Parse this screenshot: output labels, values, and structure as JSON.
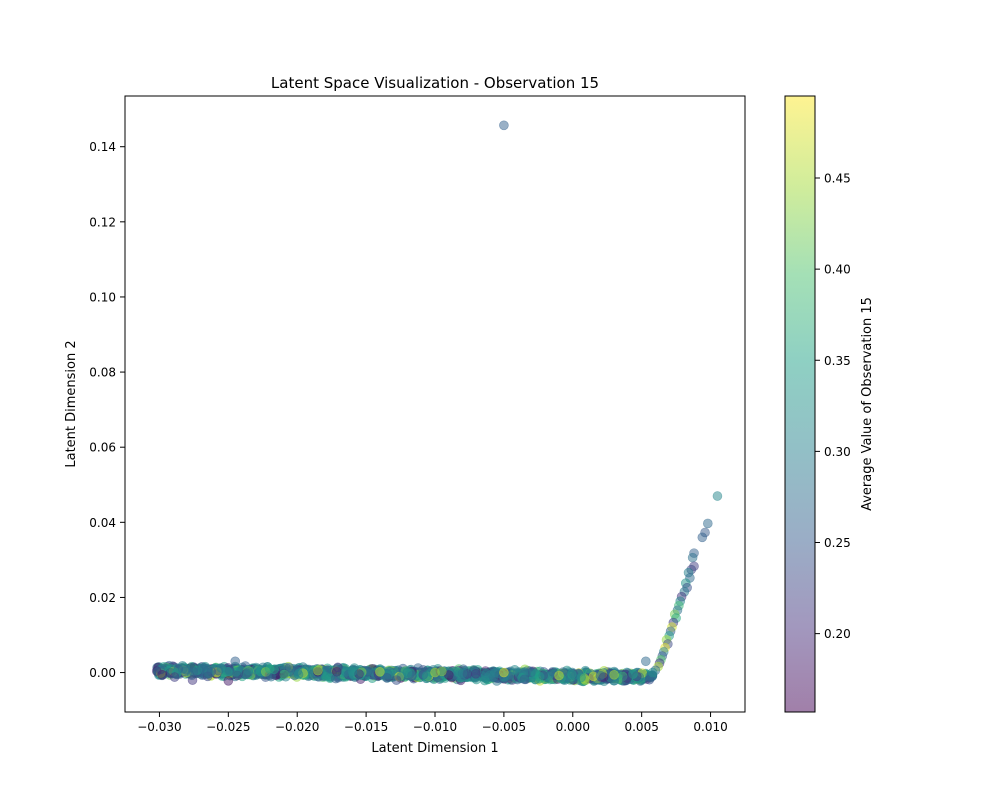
{
  "chart_data": {
    "type": "scatter",
    "title": "Latent Space Visualization - Observation 15",
    "xlabel": "Latent Dimension 1",
    "ylabel": "Latent Dimension 2",
    "xlim": [
      -0.0325,
      0.0125
    ],
    "ylim": [
      -0.0105,
      0.1535
    ],
    "xticks": [
      -0.03,
      -0.025,
      -0.02,
      -0.015,
      -0.01,
      -0.005,
      0.0,
      0.005,
      0.01
    ],
    "xtick_labels": [
      "−0.030",
      "−0.025",
      "−0.020",
      "−0.015",
      "−0.010",
      "−0.005",
      "0.000",
      "0.005",
      "0.010"
    ],
    "yticks": [
      0.0,
      0.02,
      0.04,
      0.06,
      0.08,
      0.1,
      0.12,
      0.14
    ],
    "ytick_labels": [
      "0.00",
      "0.02",
      "0.04",
      "0.06",
      "0.08",
      "0.10",
      "0.12",
      "0.14"
    ],
    "grid": false,
    "marker_alpha": 0.5,
    "colormap": "viridis",
    "colorbar": {
      "label": "Average Value of Observation 15",
      "range": [
        0.157,
        0.495
      ],
      "ticks": [
        0.2,
        0.25,
        0.3,
        0.35,
        0.4,
        0.45
      ],
      "tick_labels": [
        "0.20",
        "0.25",
        "0.30",
        "0.35",
        "0.40",
        "0.45"
      ]
    },
    "points": [
      {
        "x": -0.005,
        "y": 0.1457,
        "c": 0.26
      },
      {
        "x": 0.0105,
        "y": 0.047,
        "c": 0.31
      },
      {
        "x": 0.0098,
        "y": 0.0397,
        "c": 0.27
      },
      {
        "x": 0.0096,
        "y": 0.0373,
        "c": 0.25
      },
      {
        "x": 0.0094,
        "y": 0.036,
        "c": 0.26
      },
      {
        "x": 0.0088,
        "y": 0.0318,
        "c": 0.26
      },
      {
        "x": 0.0087,
        "y": 0.0306,
        "c": 0.28
      },
      {
        "x": 0.0088,
        "y": 0.0283,
        "c": 0.22
      },
      {
        "x": 0.0086,
        "y": 0.0274,
        "c": 0.23
      },
      {
        "x": 0.0084,
        "y": 0.0266,
        "c": 0.3
      },
      {
        "x": 0.0085,
        "y": 0.0252,
        "c": 0.27
      },
      {
        "x": 0.0082,
        "y": 0.0238,
        "c": 0.33
      },
      {
        "x": 0.0083,
        "y": 0.0226,
        "c": 0.24
      },
      {
        "x": 0.0081,
        "y": 0.0215,
        "c": 0.29
      },
      {
        "x": 0.0079,
        "y": 0.0202,
        "c": 0.21
      },
      {
        "x": 0.0078,
        "y": 0.019,
        "c": 0.31
      },
      {
        "x": 0.0077,
        "y": 0.0178,
        "c": 0.38
      },
      {
        "x": 0.0076,
        "y": 0.0166,
        "c": 0.28
      },
      {
        "x": 0.0074,
        "y": 0.0155,
        "c": 0.42
      },
      {
        "x": 0.0075,
        "y": 0.0145,
        "c": 0.36
      },
      {
        "x": 0.0073,
        "y": 0.0133,
        "c": 0.22
      },
      {
        "x": 0.0072,
        "y": 0.0121,
        "c": 0.47
      },
      {
        "x": 0.0071,
        "y": 0.011,
        "c": 0.26
      },
      {
        "x": 0.007,
        "y": 0.0098,
        "c": 0.34
      },
      {
        "x": 0.0068,
        "y": 0.0087,
        "c": 0.44
      },
      {
        "x": 0.0069,
        "y": 0.0076,
        "c": 0.23
      },
      {
        "x": 0.0067,
        "y": 0.0066,
        "c": 0.48
      },
      {
        "x": 0.0066,
        "y": 0.0055,
        "c": 0.3
      },
      {
        "x": 0.0065,
        "y": 0.0044,
        "c": 0.25
      },
      {
        "x": 0.0064,
        "y": 0.0034,
        "c": 0.4
      },
      {
        "x": 0.0063,
        "y": 0.0025,
        "c": 0.21
      },
      {
        "x": 0.0062,
        "y": 0.0016,
        "c": 0.45
      },
      {
        "x": 0.006,
        "y": 0.0006,
        "c": 0.27
      },
      {
        "x": 0.0058,
        "y": 0.0,
        "c": 0.32
      },
      {
        "x": 0.0053,
        "y": 0.003,
        "c": 0.27
      },
      {
        "x": 0.0039,
        "y": -0.002,
        "c": 0.25
      },
      {
        "x": -0.0245,
        "y": 0.003,
        "c": 0.26
      },
      {
        "x": -0.025,
        "y": -0.0022,
        "c": 0.18
      },
      {
        "x": -0.0298,
        "y": -0.0006,
        "c": 0.18
      },
      {
        "x": -0.0302,
        "y": 0.0004,
        "c": 0.2
      },
      {
        "x": -0.0289,
        "y": -0.0012,
        "c": 0.22
      },
      {
        "x": -0.0276,
        "y": -0.002,
        "c": 0.21
      },
      {
        "x": -0.0265,
        "y": -0.001,
        "c": 0.23
      },
      {
        "x": -0.0172,
        "y": -0.0016,
        "c": 0.26
      },
      {
        "x": -0.0135,
        "y": -0.0014,
        "c": 0.25
      },
      {
        "x": -0.0128,
        "y": -0.002,
        "c": 0.24
      },
      {
        "x": -0.005,
        "y": -0.0015,
        "c": 0.28
      },
      {
        "x": -0.0035,
        "y": -0.0018,
        "c": 0.26
      },
      {
        "x": -0.0185,
        "y": 0.0005,
        "c": 0.44
      },
      {
        "x": -0.014,
        "y": 0.0002,
        "c": 0.46
      },
      {
        "x": -0.01,
        "y": 0.0,
        "c": 0.45
      },
      {
        "x": -0.0095,
        "y": 0.0003,
        "c": 0.43
      },
      {
        "x": -0.005,
        "y": 0.0,
        "c": 0.48
      },
      {
        "x": -0.001,
        "y": -0.0008,
        "c": 0.46
      },
      {
        "x": 0.0015,
        "y": -0.001,
        "c": 0.47
      },
      {
        "x": 0.003,
        "y": -0.0006,
        "c": 0.45
      },
      {
        "x": -0.022,
        "y": 0.001,
        "c": 0.36
      },
      {
        "x": -0.023,
        "y": 0.0008,
        "c": 0.33
      },
      {
        "x": -0.0255,
        "y": 0.0012,
        "c": 0.31
      },
      {
        "x": -0.0283,
        "y": 0.001,
        "c": 0.29
      },
      {
        "x": -0.0265,
        "y": 0.0005,
        "c": 0.27
      },
      {
        "x": -0.02,
        "y": 0.0004,
        "c": 0.3
      },
      {
        "x": -0.016,
        "y": 0.0003,
        "c": 0.32
      },
      {
        "x": -0.012,
        "y": 0.0001,
        "c": 0.31
      },
      {
        "x": -0.008,
        "y": -0.0002,
        "c": 0.29
      },
      {
        "x": -0.002,
        "y": -0.0006,
        "c": 0.3
      },
      {
        "x": 0.002,
        "y": -0.0008,
        "c": 0.28
      }
    ],
    "band": {
      "x_start": -0.0302,
      "x_end": 0.0058,
      "y_start": 0.0006,
      "y_end": -0.0012,
      "y_spread": 0.0012,
      "count": 1800
    }
  }
}
